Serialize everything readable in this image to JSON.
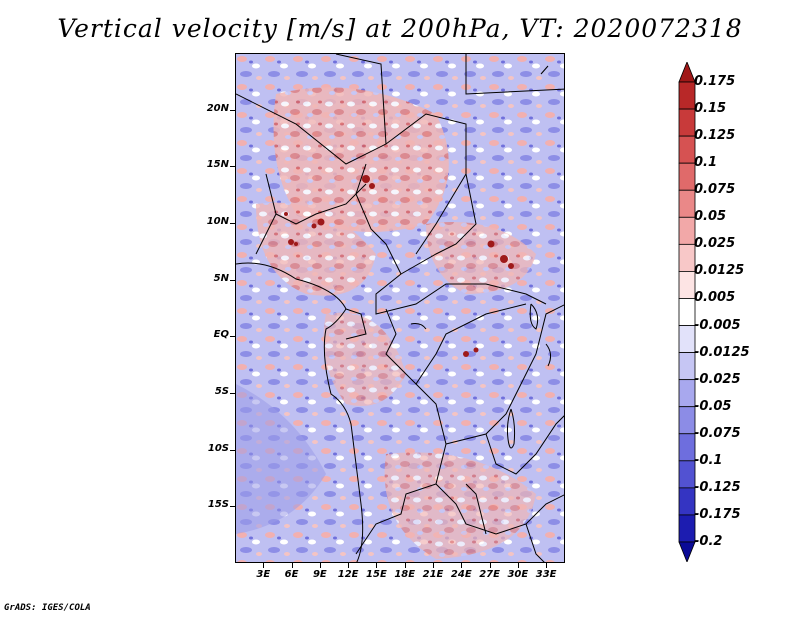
{
  "title": "Vertical velocity [m/s] at 200hPa, VT: 2020072318",
  "credit": "GrADS: IGES/COLA",
  "map": {
    "lat_labels": [
      "20N",
      "15N",
      "10N",
      "5N",
      "EQ",
      "5S",
      "10S",
      "15S"
    ],
    "lon_labels": [
      "3E",
      "6E",
      "9E",
      "12E",
      "15E",
      "18E",
      "21E",
      "24E",
      "27E",
      "30E",
      "33E"
    ],
    "lat_values": [
      20,
      15,
      10,
      5,
      0,
      -5,
      -10,
      -15
    ],
    "lon_values": [
      3,
      6,
      9,
      12,
      15,
      18,
      21,
      24,
      27,
      30,
      33
    ],
    "lon_range": [
      0,
      35
    ],
    "lat_range": [
      -20,
      25
    ]
  },
  "colorbar": {
    "labels": [
      "0.175",
      "0.15",
      "0.125",
      "0.1",
      "0.075",
      "0.05",
      "0.025",
      "0.0125",
      "0.005",
      "-0.005",
      "-0.0125",
      "-0.025",
      "-0.05",
      "-0.075",
      "-0.1",
      "-0.125",
      "-0.175",
      "-0.2"
    ],
    "colors": [
      "#a01818",
      "#b82828",
      "#c83a3a",
      "#d65252",
      "#e06a6a",
      "#ea8888",
      "#f2a8a8",
      "#f8c8c8",
      "#fde4e4",
      "#ffffff",
      "#e2e2fa",
      "#c6c6f4",
      "#a8a8ee",
      "#8c8ce6",
      "#6e6ede",
      "#5252d2",
      "#3434c2",
      "#1c1cb0",
      "#0a0a96"
    ]
  }
}
